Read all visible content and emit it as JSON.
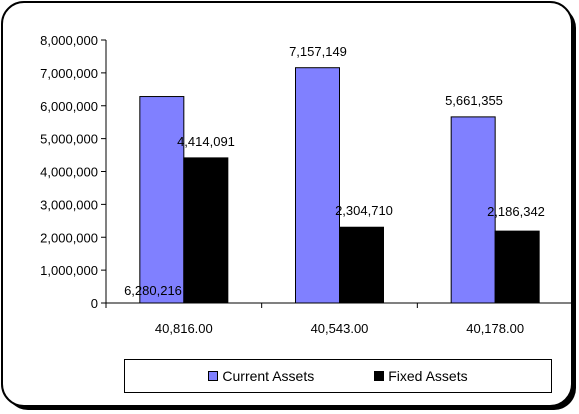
{
  "chart_data": {
    "type": "bar",
    "categories": [
      "40,816.00",
      "40,543.00",
      "40,178.00"
    ],
    "series": [
      {
        "name": "Current Assets",
        "values": [
          6280216,
          7157149,
          5661355
        ],
        "labels": [
          "6,280,216",
          "7,157,149",
          "5,661,355"
        ],
        "color": "#8080ff"
      },
      {
        "name": "Fixed Assets",
        "values": [
          4414091,
          2304710,
          2186342
        ],
        "labels": [
          "4,414,091",
          "2,304,710",
          "2,186,342"
        ],
        "color": "#000000"
      }
    ],
    "y_ticks": [
      "0",
      "1,000,000",
      "2,000,000",
      "3,000,000",
      "4,000,000",
      "5,000,000",
      "6,000,000",
      "7,000,000",
      "8,000,000"
    ],
    "ylim": [
      0,
      8000000
    ],
    "grid": false,
    "legend_position": "bottom"
  }
}
